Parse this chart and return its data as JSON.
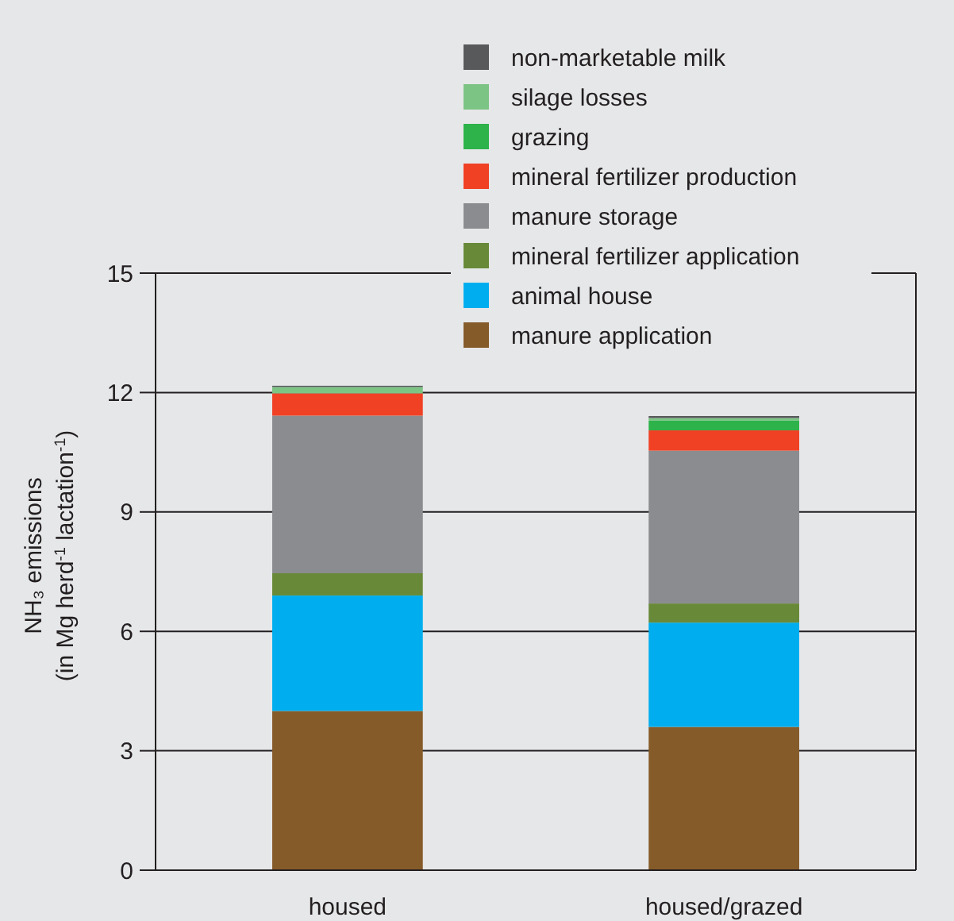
{
  "chart_data": {
    "type": "bar",
    "stacked": true,
    "ylabel": "NH₃ emissions\n(in Mg herd$^{-1}$ lactation$^{-1}$)",
    "categories": [
      "housed",
      "housed/grazed"
    ],
    "series": [
      {
        "name": "manure application",
        "color": "#865b2a",
        "values": [
          4.0,
          3.6
        ]
      },
      {
        "name": "animal house",
        "color": "#00aeef",
        "values": [
          2.9,
          2.62
        ]
      },
      {
        "name": "mineral fertilizer application",
        "color": "#688a38",
        "values": [
          0.56,
          0.48
        ]
      },
      {
        "name": "manure storage",
        "color": "#8b8c8f",
        "values": [
          3.96,
          3.84
        ]
      },
      {
        "name": "mineral fertilizer production",
        "color": "#f04125",
        "values": [
          0.56,
          0.51
        ]
      },
      {
        "name": "grazing",
        "color": "#2db34a",
        "values": [
          0,
          0.25
        ]
      },
      {
        "name": "silage losses",
        "color": "#7cc484",
        "values": [
          0.16,
          0.06
        ]
      },
      {
        "name": "non-marketable milk",
        "color": "#58595b",
        "values": [
          0.03,
          0.05
        ]
      }
    ],
    "ylim": [
      0,
      15
    ],
    "yticks": [
      0,
      3,
      6,
      9,
      12,
      15
    ],
    "grid": "y",
    "legend": "top"
  }
}
